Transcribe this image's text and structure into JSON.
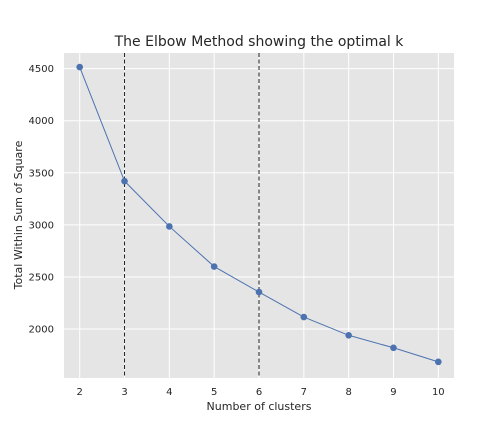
{
  "chart_data": {
    "type": "line",
    "title": "The Elbow Method showing the optimal k",
    "xlabel": "Number of clusters",
    "ylabel": "Total Within Sum of Square",
    "x": [
      2,
      3,
      4,
      5,
      6,
      7,
      8,
      9,
      10
    ],
    "series": [
      {
        "values": [
          4515,
          3420,
          2985,
          2600,
          2355,
          2115,
          1940,
          1820,
          1685
        ],
        "color": "#4c72b0",
        "marker": "circle"
      }
    ],
    "xticks": [
      2,
      3,
      4,
      5,
      6,
      7,
      8,
      9,
      10
    ],
    "yticks": [
      2000,
      2500,
      3000,
      3500,
      4000,
      4500
    ],
    "xlim": [
      1.65,
      10.35
    ],
    "ylim": [
      1530,
      4650
    ],
    "vlines": [
      {
        "x": 3,
        "style": "dashed",
        "color": "#262626"
      },
      {
        "x": 6,
        "style": "dashed",
        "color": "#262626"
      }
    ],
    "grid": true,
    "background": "#e5e5e5",
    "grid_color": "#ffffff"
  }
}
